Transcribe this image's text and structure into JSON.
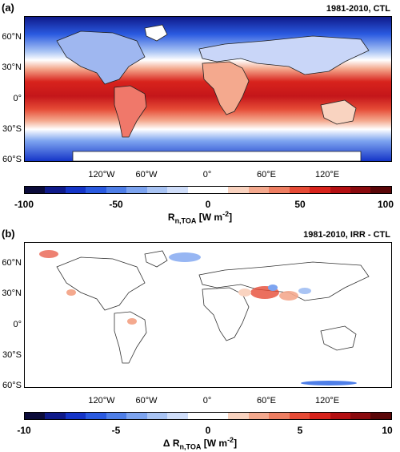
{
  "panel_a": {
    "label": "(a)",
    "title": "1981-2010, CTL",
    "lat_labels": [
      "60°N",
      "30°N",
      "0°",
      "30°S",
      "60°S"
    ],
    "lon_labels": [
      "120°W",
      "60°W",
      "0°",
      "60°E",
      "120°E"
    ],
    "colorbar_ticks": [
      "-100",
      "-50",
      "0",
      "50",
      "100"
    ],
    "colorbar_label": "R",
    "colorbar_label_sub": "n,TOA",
    "colorbar_label_unit": " [W m",
    "colorbar_label_sup": "-2",
    "colorbar_label_end": "]"
  },
  "panel_b": {
    "label": "(b)",
    "title": "1981-2010, IRR - CTL",
    "lat_labels": [
      "60°N",
      "30°N",
      "0°",
      "30°S",
      "60°S"
    ],
    "lon_labels": [
      "120°W",
      "60°W",
      "0°",
      "60°E",
      "120°E"
    ],
    "colorbar_ticks": [
      "-10",
      "-5",
      "0",
      "5",
      "10"
    ],
    "colorbar_label": "Δ R",
    "colorbar_label_sub": "n,TOA",
    "colorbar_label_unit": " [W m",
    "colorbar_label_sup": "-2",
    "colorbar_label_end": "]"
  },
  "colors": {
    "colorbar": [
      "#0b0b3a",
      "#0f1a8a",
      "#1535c8",
      "#2a5ae0",
      "#4f7fe8",
      "#7da4f0",
      "#a9c4f4",
      "#d0defa",
      "#ffffff",
      "#ffffff",
      "#f9d3c0",
      "#f4a98e",
      "#ee7e62",
      "#e64b36",
      "#d8231c",
      "#b40f12",
      "#8a0a0e",
      "#5a0608"
    ],
    "land_outline": "#333333"
  }
}
